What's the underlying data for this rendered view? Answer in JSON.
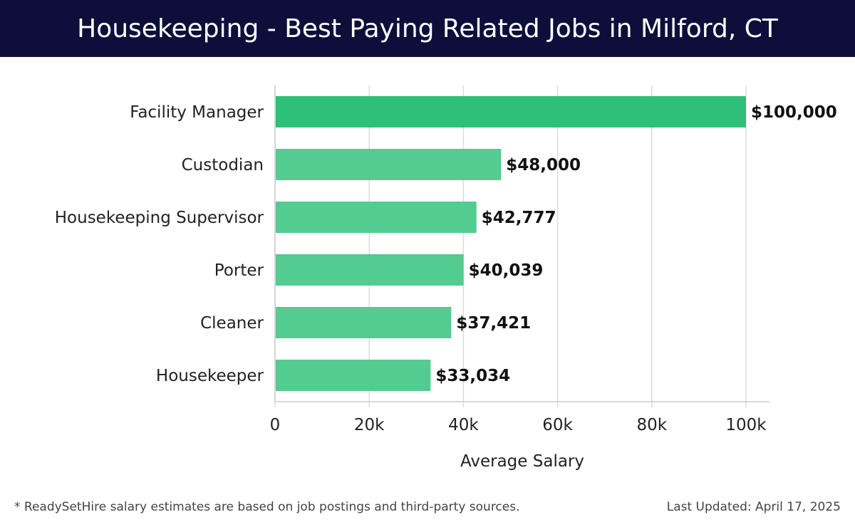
{
  "header": {
    "title": "Housekeeping - Best Paying Related Jobs in Milford, CT"
  },
  "footer": {
    "note": "* ReadySetHire salary estimates are based on job postings and third-party sources.",
    "updated": "Last Updated: April 17, 2025"
  },
  "colors": {
    "header_bg": "#0d0f3a",
    "highlight_bar": "#2ebf78",
    "bar": "#52cc91"
  },
  "chart_data": {
    "type": "bar",
    "orientation": "horizontal",
    "categories": [
      "Facility Manager",
      "Custodian",
      "Housekeeping Supervisor",
      "Porter",
      "Cleaner",
      "Housekeeper"
    ],
    "values": [
      100000,
      48000,
      42777,
      40039,
      37421,
      33034
    ],
    "value_labels": [
      "$100,000",
      "$48,000",
      "$42,777",
      "$40,039",
      "$37,421",
      "$33,034"
    ],
    "xlabel": "Average Salary",
    "xlim": [
      0,
      105000
    ],
    "x_ticks": [
      0,
      20000,
      40000,
      60000,
      80000,
      100000
    ],
    "x_tick_labels": [
      "0",
      "20k",
      "40k",
      "60k",
      "80k",
      "100k"
    ],
    "grid": true,
    "highlight_index": 0
  }
}
